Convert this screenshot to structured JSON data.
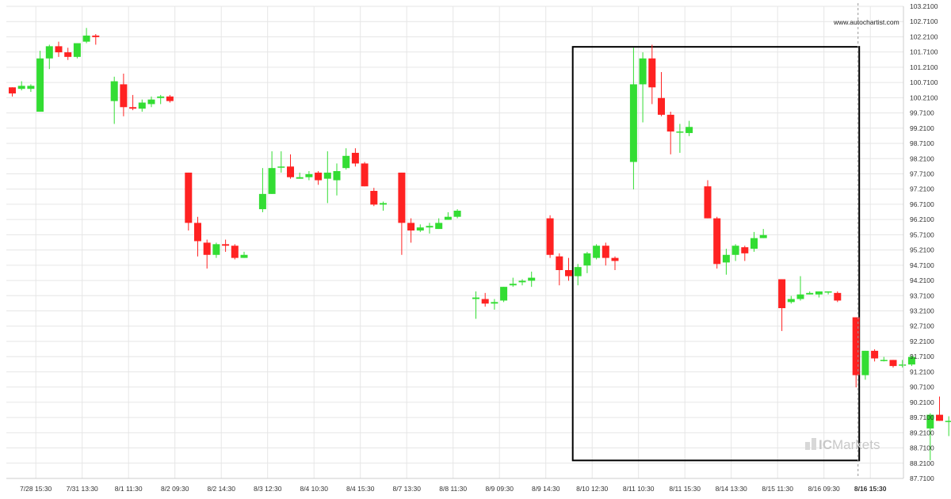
{
  "watermark": {
    "url": "www.autochartist.com",
    "brand_prefix": "IC",
    "brand_suffix": "Markets"
  },
  "colors": {
    "bull": "#33dd33",
    "bear": "#ff2222",
    "grid": "#e6e6e6",
    "highlight_box": "#000000",
    "current_line": "#999999"
  },
  "chart_data": {
    "type": "candlestick",
    "ylim": [
      87.71,
      103.21
    ],
    "yticks": [
      "103.2100",
      "102.7100",
      "102.2100",
      "101.7100",
      "101.2100",
      "100.7100",
      "100.2100",
      "99.7100",
      "99.2100",
      "98.7100",
      "98.2100",
      "97.7100",
      "97.2100",
      "96.7100",
      "96.2100",
      "95.7100",
      "95.2100",
      "94.7100",
      "94.2100",
      "93.7100",
      "93.2100",
      "92.7100",
      "92.2100",
      "91.7100",
      "91.2100",
      "90.7100",
      "90.2100",
      "89.7100",
      "89.2100",
      "88.7100",
      "88.2100",
      "87.7100"
    ],
    "xticks": [
      {
        "label": "7/28 15:30",
        "index": 1
      },
      {
        "label": "7/31 13:30",
        "index": 6
      },
      {
        "label": "8/1 11:30",
        "index": 11
      },
      {
        "label": "8/2 09:30",
        "index": 16
      },
      {
        "label": "8/2 14:30",
        "index": 21
      },
      {
        "label": "8/3 12:30",
        "index": 26
      },
      {
        "label": "8/4 10:30",
        "index": 31
      },
      {
        "label": "8/4 15:30",
        "index": 36
      },
      {
        "label": "8/7 13:30",
        "index": 41
      },
      {
        "label": "8/8 11:30",
        "index": 46
      },
      {
        "label": "8/9 09:30",
        "index": 51
      },
      {
        "label": "8/9 14:30",
        "index": 56
      },
      {
        "label": "8/10 12:30",
        "index": 61
      },
      {
        "label": "8/11 10:30",
        "index": 66
      },
      {
        "label": "8/11 15:30",
        "index": 71
      },
      {
        "label": "8/14 13:30",
        "index": 76
      },
      {
        "label": "8/15 11:30",
        "index": 81
      },
      {
        "label": "8/16 09:30",
        "index": 86
      },
      {
        "label": "8/16 15:30",
        "index": 91,
        "bold": true
      }
    ],
    "candles": [
      [
        100.55,
        100.35,
        100.55,
        100.25
      ],
      [
        100.5,
        100.6,
        100.75,
        100.45
      ],
      [
        100.5,
        100.6,
        100.65,
        100.4
      ],
      [
        99.75,
        101.5,
        101.75,
        99.75
      ],
      [
        101.5,
        101.9,
        101.95,
        101.15
      ],
      [
        101.9,
        101.7,
        102.05,
        101.55
      ],
      [
        101.7,
        101.55,
        101.85,
        101.45
      ],
      [
        101.55,
        102.0,
        102.0,
        101.5
      ],
      [
        102.05,
        102.25,
        102.5,
        102.0
      ],
      [
        102.25,
        102.2,
        102.3,
        101.95
      ],
      [
        null,
        null,
        null,
        null
      ],
      [
        100.1,
        100.75,
        100.9,
        99.35
      ],
      [
        100.65,
        99.9,
        101.0,
        99.6
      ],
      [
        99.9,
        99.85,
        100.3,
        99.8
      ],
      [
        99.85,
        100.05,
        100.15,
        99.75
      ],
      [
        100.0,
        100.15,
        100.25,
        99.9
      ],
      [
        100.2,
        100.25,
        100.3,
        100.0
      ],
      [
        100.25,
        100.1,
        100.3,
        100.05
      ],
      [
        null,
        null,
        null,
        null
      ],
      [
        97.75,
        96.1,
        97.75,
        95.85
      ],
      [
        96.1,
        95.5,
        96.3,
        95.0
      ],
      [
        95.45,
        95.05,
        95.55,
        94.6
      ],
      [
        95.05,
        95.4,
        95.45,
        94.95
      ],
      [
        95.4,
        95.35,
        95.55,
        95.15
      ],
      [
        95.35,
        94.95,
        95.4,
        94.9
      ],
      [
        94.95,
        95.05,
        95.15,
        94.95
      ],
      [
        null,
        null,
        null,
        null
      ],
      [
        96.55,
        97.05,
        97.9,
        96.45
      ],
      [
        97.05,
        97.9,
        98.45,
        97.05
      ],
      [
        97.95,
        97.95,
        98.45,
        97.75
      ],
      [
        97.95,
        97.6,
        98.35,
        97.55
      ],
      [
        97.55,
        97.6,
        97.75,
        97.55
      ],
      [
        97.6,
        97.7,
        97.8,
        97.5
      ],
      [
        97.75,
        97.5,
        97.8,
        97.35
      ],
      [
        97.55,
        97.75,
        98.45,
        96.75
      ],
      [
        97.5,
        97.8,
        98.05,
        97.0
      ],
      [
        97.9,
        98.3,
        98.55,
        97.85
      ],
      [
        98.4,
        98.05,
        98.55,
        97.95
      ],
      [
        98.05,
        97.3,
        98.1,
        97.3
      ],
      [
        97.15,
        96.7,
        97.25,
        96.65
      ],
      [
        96.7,
        96.75,
        96.8,
        96.5
      ],
      [
        null,
        null,
        null,
        null
      ],
      [
        97.75,
        96.1,
        97.75,
        95.05
      ],
      [
        96.1,
        95.85,
        96.25,
        95.45
      ],
      [
        95.85,
        95.95,
        96.05,
        95.8
      ],
      [
        95.95,
        96.0,
        96.1,
        95.75
      ],
      [
        95.9,
        96.1,
        96.25,
        95.9
      ],
      [
        96.2,
        96.3,
        96.45,
        96.2
      ],
      [
        96.3,
        96.5,
        96.55,
        96.25
      ],
      [
        null,
        null,
        null,
        null
      ],
      [
        93.6,
        93.65,
        93.85,
        92.95
      ],
      [
        93.6,
        93.45,
        93.8,
        93.35
      ],
      [
        93.45,
        93.5,
        93.6,
        93.25
      ],
      [
        93.55,
        94.0,
        94.0,
        93.5
      ],
      [
        94.05,
        94.1,
        94.3,
        94.0
      ],
      [
        94.15,
        94.2,
        94.25,
        94.05
      ],
      [
        94.2,
        94.3,
        94.5,
        94.0
      ],
      [
        null,
        null,
        null,
        null
      ],
      [
        96.25,
        95.05,
        96.35,
        94.95
      ],
      [
        95.0,
        94.55,
        95.1,
        94.05
      ],
      [
        94.55,
        94.35,
        94.95,
        94.2
      ],
      [
        94.35,
        94.65,
        94.75,
        94.05
      ],
      [
        94.7,
        95.1,
        95.15,
        94.45
      ],
      [
        94.95,
        95.35,
        95.4,
        94.9
      ],
      [
        95.35,
        94.95,
        95.45,
        94.7
      ],
      [
        94.95,
        94.85,
        95.0,
        94.55
      ],
      [
        null,
        null,
        null,
        null
      ],
      [
        98.1,
        100.65,
        101.85,
        97.2
      ],
      [
        100.65,
        101.5,
        101.7,
        99.4
      ],
      [
        101.5,
        100.55,
        101.95,
        100.0
      ],
      [
        100.2,
        99.65,
        101.05,
        99.6
      ],
      [
        99.65,
        99.1,
        99.75,
        98.35
      ],
      [
        99.1,
        99.1,
        99.35,
        98.4
      ],
      [
        99.05,
        99.25,
        99.45,
        98.95
      ],
      [
        null,
        null,
        null,
        null
      ],
      [
        97.3,
        96.25,
        97.5,
        96.25
      ],
      [
        96.25,
        94.75,
        96.3,
        94.6
      ],
      [
        94.8,
        95.05,
        95.25,
        94.4
      ],
      [
        95.05,
        95.35,
        95.4,
        94.85
      ],
      [
        95.3,
        95.1,
        95.35,
        94.85
      ],
      [
        95.25,
        95.6,
        95.8,
        95.15
      ],
      [
        95.6,
        95.7,
        95.9,
        95.6
      ],
      [
        null,
        null,
        null,
        null
      ],
      [
        94.25,
        93.3,
        94.25,
        92.55
      ],
      [
        93.5,
        93.6,
        93.7,
        93.45
      ],
      [
        93.6,
        93.75,
        94.35,
        93.55
      ],
      [
        93.75,
        93.8,
        93.85,
        93.75
      ],
      [
        93.75,
        93.85,
        93.85,
        93.65
      ],
      [
        93.85,
        93.85,
        93.85,
        93.75
      ],
      [
        93.8,
        93.55,
        93.85,
        93.5
      ],
      [
        null,
        null,
        null,
        null
      ],
      [
        93.0,
        91.1,
        93.0,
        90.7
      ],
      [
        91.1,
        91.9,
        91.9,
        90.95
      ],
      [
        91.9,
        91.65,
        91.95,
        91.55
      ],
      [
        91.6,
        91.6,
        91.7,
        91.55
      ],
      [
        91.6,
        91.4,
        91.6,
        91.35
      ],
      [
        91.45,
        91.45,
        91.6,
        91.35
      ],
      [
        91.45,
        91.7,
        91.75,
        91.4
      ],
      [
        null,
        null,
        null,
        null
      ],
      [
        89.35,
        89.8,
        89.85,
        88.3
      ],
      [
        89.8,
        89.6,
        90.4,
        89.6
      ],
      [
        89.6,
        89.6,
        89.75,
        89.1
      ],
      [
        89.65,
        89.7,
        89.85,
        89.5
      ],
      [
        89.7,
        89.75,
        89.85,
        89.45
      ],
      [
        89.7,
        89.2,
        89.7,
        88.9
      ],
      [
        89.15,
        89.15,
        89.25,
        88.95
      ]
    ],
    "highlight_box": {
      "from_index": 61,
      "to_index": 91,
      "y_high": 101.88,
      "y_low": 88.3
    },
    "current_index": 91
  }
}
